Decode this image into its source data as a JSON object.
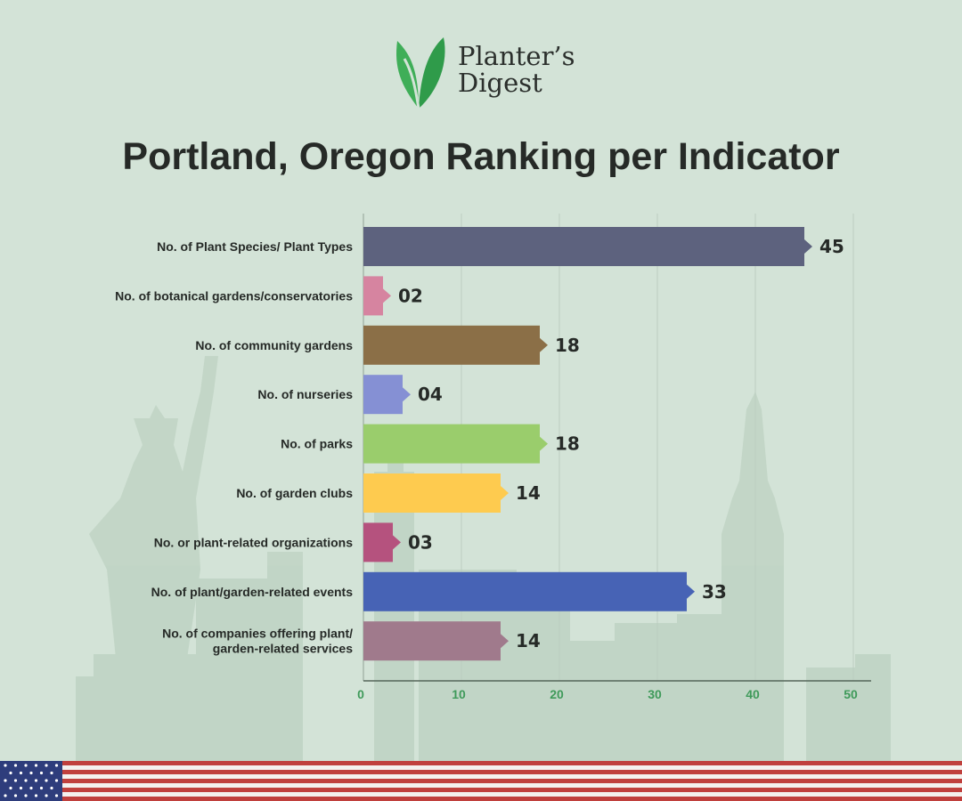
{
  "brand": {
    "name_line1": "Planter’s",
    "name_line2": "Digest",
    "logo_icon": "leaf-sprout-icon",
    "leaf_color": "#3fae58"
  },
  "title": "Portland, Oregon Ranking per Indicator",
  "chart_data": {
    "type": "bar",
    "orientation": "horizontal",
    "title": "Portland, Oregon Ranking per Indicator",
    "xlabel": "",
    "ylabel": "",
    "xlim": [
      0,
      52
    ],
    "x_ticks": [
      0,
      10,
      20,
      30,
      40,
      50
    ],
    "grid": true,
    "categories": [
      [
        "No. of Plant Species/ Plant Types"
      ],
      [
        "No. of botanical gardens/conservatories"
      ],
      [
        "No. of community gardens"
      ],
      [
        "No. of nurseries"
      ],
      [
        "No. of parks"
      ],
      [
        "No. of garden clubs"
      ],
      [
        "No. or plant-related organizations"
      ],
      [
        "No. of plant/garden-related events"
      ],
      [
        "No. of companies offering plant/",
        "garden-related services"
      ]
    ],
    "values": [
      45,
      2,
      18,
      4,
      18,
      14,
      3,
      33,
      14
    ],
    "value_labels": [
      "45",
      "02",
      "18",
      "04",
      "18",
      "14",
      "03",
      "33",
      "14"
    ],
    "colors": [
      "#5d627e",
      "#d684a0",
      "#8b6f47",
      "#8590d4",
      "#9acd6c",
      "#fecb4f",
      "#b5527e",
      "#4763b5",
      "#a07a8c"
    ]
  },
  "footer": {
    "flag_icon": "us-flag-icon"
  }
}
